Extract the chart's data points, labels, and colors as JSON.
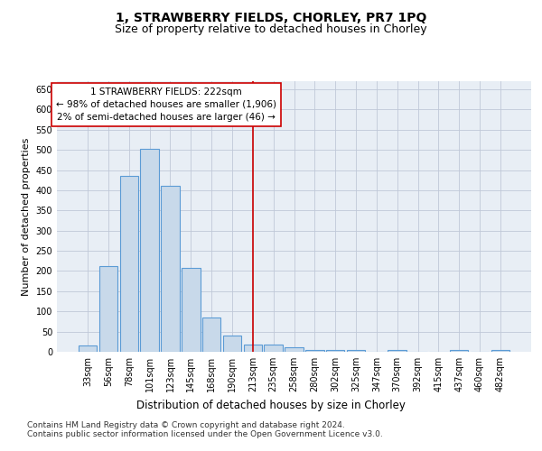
{
  "title": "1, STRAWBERRY FIELDS, CHORLEY, PR7 1PQ",
  "subtitle": "Size of property relative to detached houses in Chorley",
  "xlabel": "Distribution of detached houses by size in Chorley",
  "ylabel": "Number of detached properties",
  "categories": [
    "33sqm",
    "56sqm",
    "78sqm",
    "101sqm",
    "123sqm",
    "145sqm",
    "168sqm",
    "190sqm",
    "213sqm",
    "235sqm",
    "258sqm",
    "280sqm",
    "302sqm",
    "325sqm",
    "347sqm",
    "370sqm",
    "392sqm",
    "415sqm",
    "437sqm",
    "460sqm",
    "482sqm"
  ],
  "values": [
    15,
    212,
    435,
    503,
    410,
    207,
    85,
    40,
    18,
    17,
    11,
    5,
    5,
    5,
    0,
    5,
    0,
    0,
    5,
    0,
    5
  ],
  "bar_color": "#c8d9ea",
  "bar_edge_color": "#5b9bd5",
  "bar_edge_width": 0.8,
  "vline_x_index": 8,
  "vline_color": "#cc0000",
  "annotation_line1": "1 STRAWBERRY FIELDS: 222sqm",
  "annotation_line2": "← 98% of detached houses are smaller (1,906)",
  "annotation_line3": "2% of semi-detached houses are larger (46) →",
  "annotation_box_color": "#ffffff",
  "annotation_box_edge_color": "#cc0000",
  "ylim": [
    0,
    670
  ],
  "yticks": [
    0,
    50,
    100,
    150,
    200,
    250,
    300,
    350,
    400,
    450,
    500,
    550,
    600,
    650
  ],
  "grid_color": "#c0c8d8",
  "background_color": "#e8eef5",
  "footer_line1": "Contains HM Land Registry data © Crown copyright and database right 2024.",
  "footer_line2": "Contains public sector information licensed under the Open Government Licence v3.0.",
  "title_fontsize": 10,
  "subtitle_fontsize": 9,
  "xlabel_fontsize": 8.5,
  "ylabel_fontsize": 8,
  "tick_fontsize": 7,
  "annotation_fontsize": 7.5,
  "footer_fontsize": 6.5
}
